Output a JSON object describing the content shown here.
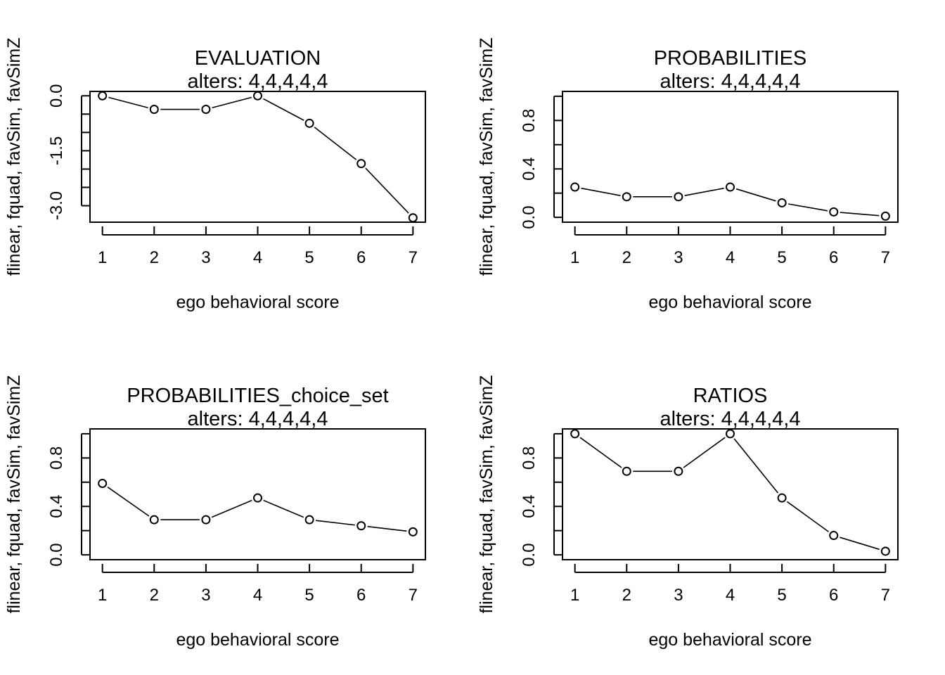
{
  "chart_data": [
    {
      "type": "line",
      "title": "EVALUATION",
      "subtitle": "alters: 4,4,4,4,4",
      "xlabel": "ego behavioral score",
      "ylabel": "flinear, fquad, favSim, favSimZ",
      "x": [
        1,
        2,
        3,
        4,
        5,
        6,
        7
      ],
      "xticks": [
        "1",
        "2",
        "3",
        "4",
        "5",
        "6",
        "7"
      ],
      "values": [
        0.0,
        -0.37,
        -0.37,
        0.0,
        -0.75,
        -1.85,
        -3.33
      ],
      "ylim": [
        -3.45,
        0.12
      ],
      "yticks": [
        0.0,
        -0.5,
        -1.0,
        -1.5,
        -2.0,
        -2.5,
        -3.0
      ],
      "ytick_labels": [
        "0.0",
        "",
        "",
        "-1.5",
        "",
        "",
        "-3.0"
      ],
      "grid": false,
      "legend": "none"
    },
    {
      "type": "line",
      "title": "PROBABILITIES",
      "subtitle": "alters: 4,4,4,4,4",
      "xlabel": "ego behavioral score",
      "ylabel": "flinear, fquad, favSim, favSimZ",
      "x": [
        1,
        2,
        3,
        4,
        5,
        6,
        7
      ],
      "xticks": [
        "1",
        "2",
        "3",
        "4",
        "5",
        "6",
        "7"
      ],
      "values": [
        0.25,
        0.17,
        0.17,
        0.25,
        0.12,
        0.045,
        0.01
      ],
      "ylim": [
        -0.04,
        1.04
      ],
      "yticks": [
        0.0,
        0.2,
        0.4,
        0.6,
        0.8,
        1.0
      ],
      "ytick_labels": [
        "0.0",
        "",
        "0.4",
        "",
        "0.8",
        ""
      ],
      "grid": false,
      "legend": "none"
    },
    {
      "type": "line",
      "title": "PROBABILITIES_choice_set",
      "subtitle": "alters: 4,4,4,4,4",
      "xlabel": "ego behavioral score",
      "ylabel": "flinear, fquad, favSim, favSimZ",
      "x": [
        1,
        2,
        3,
        4,
        5,
        6,
        7
      ],
      "xticks": [
        "1",
        "2",
        "3",
        "4",
        "5",
        "6",
        "7"
      ],
      "values": [
        0.59,
        0.29,
        0.29,
        0.47,
        0.29,
        0.24,
        0.19
      ],
      "ylim": [
        -0.04,
        1.04
      ],
      "yticks": [
        0.0,
        0.2,
        0.4,
        0.6,
        0.8,
        1.0
      ],
      "ytick_labels": [
        "0.0",
        "",
        "0.4",
        "",
        "0.8",
        ""
      ],
      "grid": false,
      "legend": "none"
    },
    {
      "type": "line",
      "title": "RATIOS",
      "subtitle": "alters: 4,4,4,4,4",
      "xlabel": "ego behavioral score",
      "ylabel": "flinear, fquad, favSim, favSimZ",
      "x": [
        1,
        2,
        3,
        4,
        5,
        6,
        7
      ],
      "xticks": [
        "1",
        "2",
        "3",
        "4",
        "5",
        "6",
        "7"
      ],
      "values": [
        1.0,
        0.69,
        0.69,
        1.0,
        0.47,
        0.16,
        0.03
      ],
      "ylim": [
        -0.04,
        1.04
      ],
      "yticks": [
        0.0,
        0.2,
        0.4,
        0.6,
        0.8,
        1.0
      ],
      "ytick_labels": [
        "0.0",
        "",
        "0.4",
        "",
        "0.8",
        ""
      ],
      "grid": false,
      "legend": "none"
    }
  ]
}
